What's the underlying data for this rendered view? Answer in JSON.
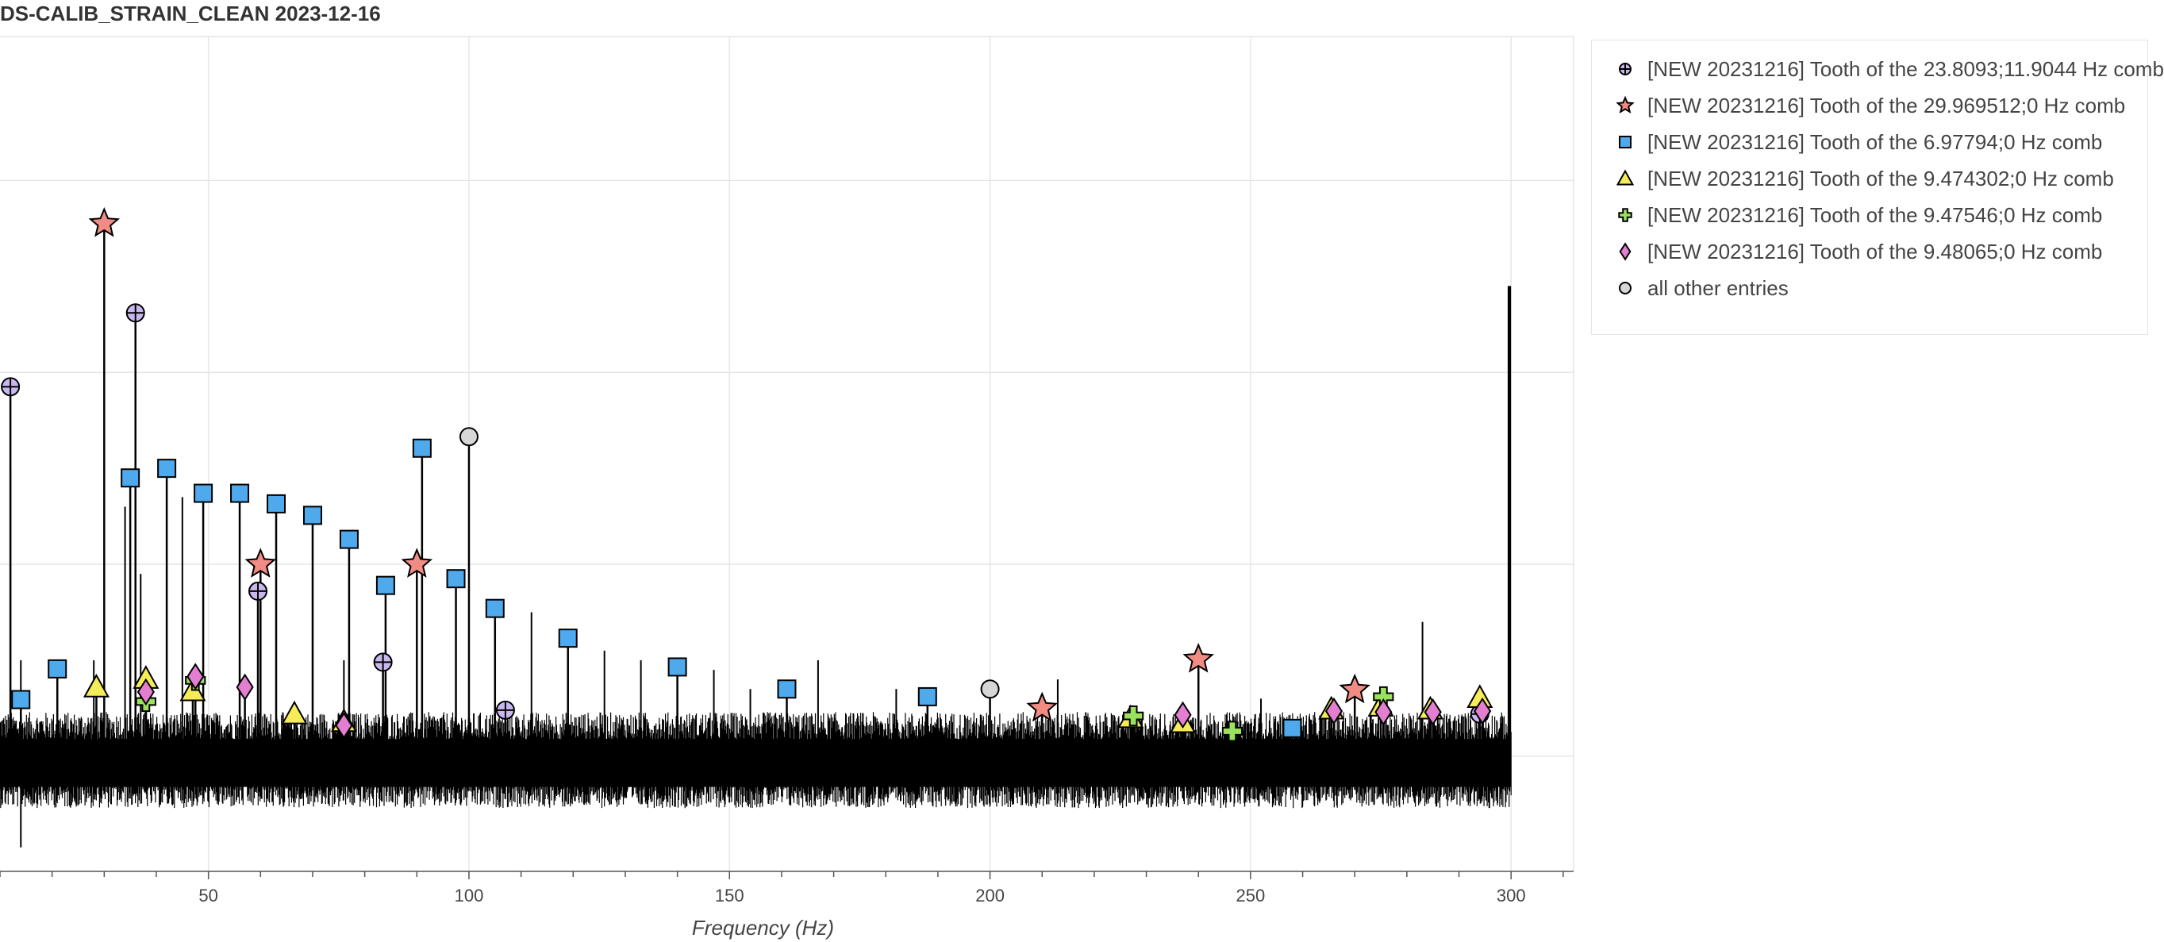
{
  "chart_data": {
    "type": "scatter",
    "title": "DS-CALIB_STRAIN_CLEAN 2023-12-16",
    "xlabel": "Frequency (Hz)",
    "ylabel": "",
    "xlim": [
      10,
      312
    ],
    "ylim": [
      -0.12,
      0.75
    ],
    "x_ticks": [
      50,
      100,
      150,
      200,
      250,
      300
    ],
    "x_tick_labels": [
      "50",
      "100",
      "150",
      "200",
      "250",
      "300"
    ],
    "y_gridlines": [
      0,
      0.2,
      0.4,
      0.6
    ],
    "grid": true,
    "legend_position": "right",
    "noise_band": {
      "x_start": 10,
      "x_end": 300,
      "low": -0.02,
      "high": 0.02
    },
    "noise_spikes": [
      {
        "x": 12,
        "y": 0.3
      },
      {
        "x": 14,
        "y": 0.1
      },
      {
        "x": 28,
        "y": 0.1
      },
      {
        "x": 34,
        "y": 0.26
      },
      {
        "x": 37,
        "y": 0.19
      },
      {
        "x": 45,
        "y": 0.27
      },
      {
        "x": 60,
        "y": 0.16
      },
      {
        "x": 76,
        "y": 0.1
      },
      {
        "x": 112,
        "y": 0.15
      },
      {
        "x": 126,
        "y": 0.11
      },
      {
        "x": 133,
        "y": 0.1
      },
      {
        "x": 147,
        "y": 0.09
      },
      {
        "x": 154,
        "y": 0.07
      },
      {
        "x": 167,
        "y": 0.1
      },
      {
        "x": 182,
        "y": 0.07
      },
      {
        "x": 213,
        "y": 0.08
      },
      {
        "x": 252,
        "y": 0.06
      },
      {
        "x": 283,
        "y": 0.14
      },
      {
        "x": 299.5,
        "y": 0.49
      }
    ],
    "series": [
      {
        "name": "[NEW 20231216] Tooth of the 23.8093;11.9044 Hz comb",
        "marker": "circle-cross",
        "color": "#c9b8ee",
        "points": [
          {
            "x": 12,
            "y": 0.385
          },
          {
            "x": 36,
            "y": 0.462
          },
          {
            "x": 59.5,
            "y": 0.172
          },
          {
            "x": 83.5,
            "y": 0.098
          },
          {
            "x": 107,
            "y": 0.048
          },
          {
            "x": 294,
            "y": 0.044
          }
        ]
      },
      {
        "name": "[NEW 20231216] Tooth of the 29.969512;0 Hz comb",
        "marker": "star",
        "color": "#f08c84",
        "points": [
          {
            "x": 30,
            "y": 0.555
          },
          {
            "x": 60,
            "y": 0.2
          },
          {
            "x": 90,
            "y": 0.2
          },
          {
            "x": 210,
            "y": 0.05
          },
          {
            "x": 240,
            "y": 0.101
          },
          {
            "x": 270,
            "y": 0.069
          }
        ]
      },
      {
        "name": "[NEW 20231216] Tooth of the 6.97794;0 Hz comb",
        "marker": "square",
        "color": "#4fa9ed",
        "points": [
          {
            "x": 14,
            "y": 0.059
          },
          {
            "x": 21,
            "y": 0.091
          },
          {
            "x": 35,
            "y": 0.29
          },
          {
            "x": 42,
            "y": 0.3
          },
          {
            "x": 49,
            "y": 0.274
          },
          {
            "x": 56,
            "y": 0.274
          },
          {
            "x": 63,
            "y": 0.263
          },
          {
            "x": 70,
            "y": 0.251
          },
          {
            "x": 77,
            "y": 0.226
          },
          {
            "x": 84,
            "y": 0.178
          },
          {
            "x": 91,
            "y": 0.321
          },
          {
            "x": 97.5,
            "y": 0.185
          },
          {
            "x": 105,
            "y": 0.154
          },
          {
            "x": 119,
            "y": 0.123
          },
          {
            "x": 140,
            "y": 0.093
          },
          {
            "x": 161,
            "y": 0.07
          },
          {
            "x": 188,
            "y": 0.062
          },
          {
            "x": 258,
            "y": 0.029
          }
        ]
      },
      {
        "name": "[NEW 20231216] Tooth of the 9.474302;0 Hz comb",
        "marker": "triangle",
        "color": "#f5ec58",
        "points": [
          {
            "x": 28.5,
            "y": 0.072
          },
          {
            "x": 38,
            "y": 0.081
          },
          {
            "x": 47,
            "y": 0.068
          },
          {
            "x": 66.5,
            "y": 0.044
          },
          {
            "x": 76,
            "y": 0.036
          },
          {
            "x": 227,
            "y": 0.04
          },
          {
            "x": 237,
            "y": 0.035
          },
          {
            "x": 265.5,
            "y": 0.049
          },
          {
            "x": 275,
            "y": 0.052
          },
          {
            "x": 284.5,
            "y": 0.049
          },
          {
            "x": 294,
            "y": 0.061
          }
        ]
      },
      {
        "name": "[NEW 20231216] Tooth of the 9.47546;0 Hz comb",
        "marker": "plus",
        "color": "#9ae25d",
        "points": [
          {
            "x": 38,
            "y": 0.057
          },
          {
            "x": 47.5,
            "y": 0.079
          },
          {
            "x": 227.5,
            "y": 0.042
          },
          {
            "x": 246.5,
            "y": 0.026
          },
          {
            "x": 275.5,
            "y": 0.062
          }
        ]
      },
      {
        "name": "[NEW 20231216] Tooth of the 9.48065;0 Hz comb",
        "marker": "diamond",
        "color": "#e37ed0",
        "points": [
          {
            "x": 38,
            "y": 0.067
          },
          {
            "x": 47.5,
            "y": 0.083
          },
          {
            "x": 57,
            "y": 0.072
          },
          {
            "x": 76,
            "y": 0.032
          },
          {
            "x": 237,
            "y": 0.043
          },
          {
            "x": 266,
            "y": 0.047
          },
          {
            "x": 275.5,
            "y": 0.046
          },
          {
            "x": 285,
            "y": 0.046
          },
          {
            "x": 294.5,
            "y": 0.047
          }
        ]
      },
      {
        "name": "all other entries",
        "marker": "circle",
        "color": "#d6d6d6",
        "points": [
          {
            "x": 100,
            "y": 0.333
          },
          {
            "x": 200,
            "y": 0.07
          }
        ]
      }
    ]
  }
}
